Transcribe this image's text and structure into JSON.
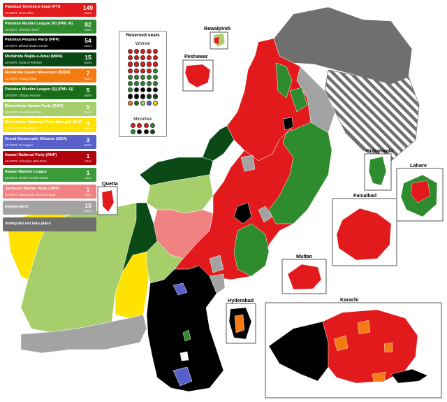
{
  "legend": {
    "parties": [
      {
        "name": "Pakistan Tehreek-e-Insaf (PTI)",
        "leader": "LEADER: Imran Khan",
        "seats": "149",
        "seats_label": "SEATS",
        "color": "#e31a1c"
      },
      {
        "name": "Pakistan Muslim League (N) (PML-N)",
        "leader": "LEADER: Shehbaz Sharif",
        "seats": "82",
        "seats_label": "SEATS",
        "color": "#2e8b2e"
      },
      {
        "name": "Pakistan Peoples Party (PPP)",
        "leader": "LEADER: Bilawal Bhutto Zardari",
        "seats": "54",
        "seats_label": "SEATS",
        "color": "#000000"
      },
      {
        "name": "Muttahida Majlis-e-Amal (MMA)",
        "leader": "LEADER: Fazal-ur-Rehman",
        "seats": "15",
        "seats_label": "SEATS",
        "color": "#0b4a17"
      },
      {
        "name": "Muttahida Qaumi Movement (MQM)",
        "leader": "LEADER: Farooq Sattar",
        "seats": "7",
        "seats_label": "SEATS",
        "color": "#f47a12"
      },
      {
        "name": "Pakistan Muslim League (Q) (PML-Q)",
        "leader": "LEADER: Chajaat Hussain",
        "seats": "5",
        "seats_label": "SEATS",
        "color": "#1a6e1a"
      },
      {
        "name": "Balochistan Awami Party (BAP)",
        "leader": "LEADER: Jam Kamal Khan",
        "seats": "5",
        "seats_label": "SEATS",
        "color": "#a6cf6c"
      },
      {
        "name": "Balochistan National Party (Mengal) (BNP-M)",
        "leader": "LEADER: Akhtar Mengal",
        "seats": "4",
        "seats_label": "SEATS",
        "color": "#ffe200"
      },
      {
        "name": "Grand Democratic Alliance (GDA)",
        "leader": "LEADER: Pir Pagaro",
        "seats": "3",
        "seats_label": "SEATS",
        "color": "#5861c9"
      },
      {
        "name": "Awami National Party (ANP)",
        "leader": "LEADER: Asfandyar Wali Khan",
        "seats": "1",
        "seats_label": "SEAT",
        "color": "#b3000e"
      },
      {
        "name": "Awami Muslim League",
        "leader": "LEADER: Sheikh Rashid Ahmad",
        "seats": "1",
        "seats_label": "SEAT",
        "color": "#3a9b3a"
      },
      {
        "name": "Jamhoori Wattan Party (JWP)",
        "leader": "LEADER: Nawabzada Shahzain Bugti",
        "seats": "1",
        "seats_label": "SEAT",
        "color": "#f08282"
      },
      {
        "name": "Independent",
        "leader": "",
        "seats": "13",
        "seats_label": "SEATS",
        "color": "#a3a3a3"
      },
      {
        "name": "Voting did not take place",
        "leader": "",
        "seats": "",
        "seats_label": "",
        "color": "#6f6f6f"
      }
    ]
  },
  "reserved": {
    "title": "Reserved seats",
    "women_label": "Women",
    "minorities_label": "Minorities",
    "women_colors": [
      "#e31a1c",
      "#e31a1c",
      "#e31a1c",
      "#e31a1c",
      "#e31a1c",
      "#e31a1c",
      "#e31a1c",
      "#e31a1c",
      "#e31a1c",
      "#e31a1c",
      "#e31a1c",
      "#e31a1c",
      "#e31a1c",
      "#e31a1c",
      "#e31a1c",
      "#e31a1c",
      "#e31a1c",
      "#e31a1c",
      "#e31a1c",
      "#2e8b2e",
      "#2e8b2e",
      "#2e8b2e",
      "#2e8b2e",
      "#2e8b2e",
      "#2e8b2e",
      "#2e8b2e",
      "#2e8b2e",
      "#2e8b2e",
      "#2e8b2e",
      "#2e8b2e",
      "#2e8b2e",
      "#000000",
      "#000000",
      "#000000",
      "#000000",
      "#000000",
      "#000000",
      "#000000",
      "#0b4a17",
      "#0b4a17",
      "#f47a12",
      "#1a6e1a",
      "#a6cf6c",
      "#5861c9",
      "#ffe200"
    ],
    "minority_colors": [
      "#e31a1c",
      "#e31a1c",
      "#e31a1c",
      "#2e8b2e",
      "#2e8b2e",
      "#000000",
      "#000000",
      "#0b4a17"
    ]
  },
  "cities": {
    "rawalpindi": "Rawalpindi",
    "peshawar": "Peshawar",
    "quetta": "Quetta",
    "gujranwala": "Gujranwala",
    "lahore": "Lahore",
    "faisalbad": "Faisalbad",
    "multan": "Multan",
    "hyderabad": "Hyderabad",
    "karachi": "Karachi"
  },
  "colors": {
    "pti": "#e31a1c",
    "pmln": "#2e8b2e",
    "ppp": "#000000",
    "mma": "#0b4a17",
    "mqm": "#f47a12",
    "bap": "#a6cf6c",
    "bnpm": "#ffe200",
    "gda": "#5861c9",
    "jwp": "#f08282",
    "independent": "#a3a3a3",
    "novote": "#6f6f6f"
  }
}
